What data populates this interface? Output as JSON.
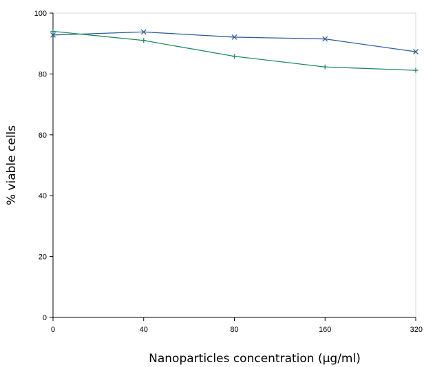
{
  "chart_data": {
    "type": "line",
    "categories": [
      "0",
      "40",
      "80",
      "160",
      "320"
    ],
    "series": [
      {
        "marker": "x",
        "color": "#2e5f9a",
        "values": [
          92.8,
          93.8,
          92.1,
          91.5,
          87.3
        ]
      },
      {
        "marker": "+",
        "color": "#1f8c5a",
        "values": [
          94.0,
          91.0,
          85.8,
          82.3,
          81.2
        ]
      }
    ],
    "title": "",
    "xlabel": "Nanoparticles concentration (µg/ml)",
    "ylabel": "% viable cells",
    "ylim": [
      0,
      100
    ],
    "yticks": [
      "0",
      "20",
      "40",
      "60",
      "80",
      "100"
    ],
    "grid": false,
    "legend": "none"
  }
}
